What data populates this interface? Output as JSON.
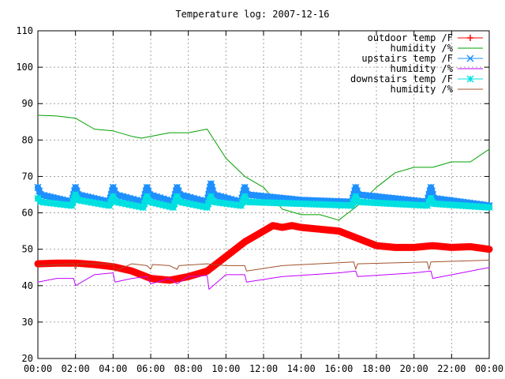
{
  "chart_data": {
    "type": "line",
    "title": "Temperature log: 2007-12-16",
    "xlabel": "",
    "ylabel": "",
    "xlim": [
      0,
      24
    ],
    "ylim": [
      20,
      110
    ],
    "grid": true,
    "legend_position": "top-right",
    "x_tick_labels": [
      "00:00",
      "02:00",
      "04:00",
      "06:00",
      "08:00",
      "10:00",
      "12:00",
      "14:00",
      "16:00",
      "18:00",
      "20:00",
      "22:00",
      "00:00"
    ],
    "y_tick_labels": [
      "20",
      "30",
      "40",
      "50",
      "60",
      "70",
      "80",
      "90",
      "100",
      "110"
    ],
    "series": [
      {
        "name": "outdoor temp /F",
        "color": "#ff0000",
        "marker": "plus",
        "x": [
          0,
          1,
          2,
          3,
          4,
          5,
          6,
          7,
          8,
          9,
          10,
          11,
          12,
          12.5,
          13,
          13.5,
          14,
          15,
          16,
          16.5,
          17,
          18,
          19,
          20,
          21,
          22,
          23,
          24
        ],
        "y": [
          46,
          46.2,
          46.2,
          45.8,
          45.2,
          44,
          42,
          41.5,
          42.5,
          44,
          48,
          52,
          55,
          56.5,
          56,
          56.5,
          56,
          55.5,
          55,
          54,
          53,
          51,
          50.5,
          50.5,
          51,
          50.5,
          50.7,
          50
        ]
      },
      {
        "name": "humidity /%",
        "color": "#00a000",
        "marker": "none",
        "x": [
          0,
          1,
          2,
          3,
          4,
          5,
          5.5,
          6,
          7,
          8,
          9,
          10,
          11,
          12,
          13,
          14,
          15,
          16,
          16.5,
          17,
          18,
          19,
          20,
          21,
          22,
          23,
          24
        ],
        "y": [
          86.8,
          86.6,
          86,
          83,
          82.5,
          81,
          80.5,
          81,
          82,
          82,
          83,
          75,
          70,
          67,
          61,
          59.5,
          59.5,
          58,
          60,
          62,
          67,
          71,
          72.5,
          72.5,
          74,
          74,
          77.5
        ]
      },
      {
        "name": "upstairs temp /F",
        "color": "#1e90ff",
        "marker": "x",
        "x": [
          0,
          0.15,
          1.8,
          2,
          2.15,
          3.8,
          4,
          4.15,
          5.6,
          5.8,
          5.95,
          7.2,
          7.4,
          7.55,
          9,
          9.2,
          9.35,
          10.8,
          11,
          11.15,
          14,
          16.7,
          16.9,
          17.05,
          20.7,
          20.9,
          21.05,
          24
        ],
        "y": [
          67,
          65,
          63,
          67,
          65,
          63,
          67,
          65,
          63,
          67,
          65,
          63,
          67,
          65,
          63,
          68,
          65,
          63,
          67,
          65,
          63.5,
          63,
          67,
          65,
          63,
          67,
          64,
          62
        ]
      },
      {
        "name": "humidity /%",
        "color": "#c000ff",
        "marker": "none",
        "x": [
          0,
          1,
          1.9,
          2,
          3,
          4,
          4.1,
          5,
          5.8,
          6,
          7,
          7.4,
          8,
          9,
          9.1,
          10,
          11,
          11.1,
          13,
          16,
          16.9,
          17,
          20,
          20.9,
          21,
          24
        ],
        "y": [
          41,
          42,
          42,
          40,
          43,
          43.5,
          41,
          42,
          42.5,
          40.5,
          42,
          40.5,
          42.5,
          42.8,
          39,
          43,
          43,
          41,
          42.5,
          43.5,
          44,
          42.5,
          43.5,
          44,
          42,
          45
        ]
      },
      {
        "name": "downstairs temp /F",
        "color": "#00e0e0",
        "marker": "star",
        "x": [
          0,
          0.15,
          1.8,
          2,
          2.15,
          3.8,
          4,
          4.15,
          5.6,
          5.8,
          5.95,
          7.2,
          7.4,
          7.55,
          9,
          9.2,
          9.35,
          10.8,
          11,
          11.15,
          14,
          16.7,
          16.9,
          17.05,
          20.7,
          20.9,
          21.05,
          24
        ],
        "y": [
          64,
          63,
          62,
          65,
          63.5,
          62,
          64.5,
          63,
          61.5,
          64.5,
          63,
          61.5,
          64.5,
          63,
          61.5,
          64.5,
          63,
          62,
          64.5,
          63,
          62.5,
          62,
          64.5,
          63,
          62,
          64,
          62.5,
          61.5
        ]
      },
      {
        "name": "humidity /%",
        "color": "#a0522d",
        "marker": "none",
        "x": [
          0,
          1.9,
          2,
          2.1,
          4,
          4.1,
          5,
          5.8,
          6,
          6.1,
          7,
          7.4,
          7.5,
          9,
          10,
          11,
          11.1,
          13,
          16.8,
          16.9,
          17,
          20.7,
          20.8,
          20.9,
          24
        ],
        "y": [
          45.5,
          46,
          44.5,
          46,
          46,
          44,
          46,
          45.5,
          44.5,
          45.8,
          45.5,
          44.5,
          45.5,
          46,
          45.5,
          45.5,
          44,
          45.5,
          46.5,
          44.5,
          46,
          46.5,
          44.5,
          46.5,
          47
        ]
      }
    ]
  }
}
